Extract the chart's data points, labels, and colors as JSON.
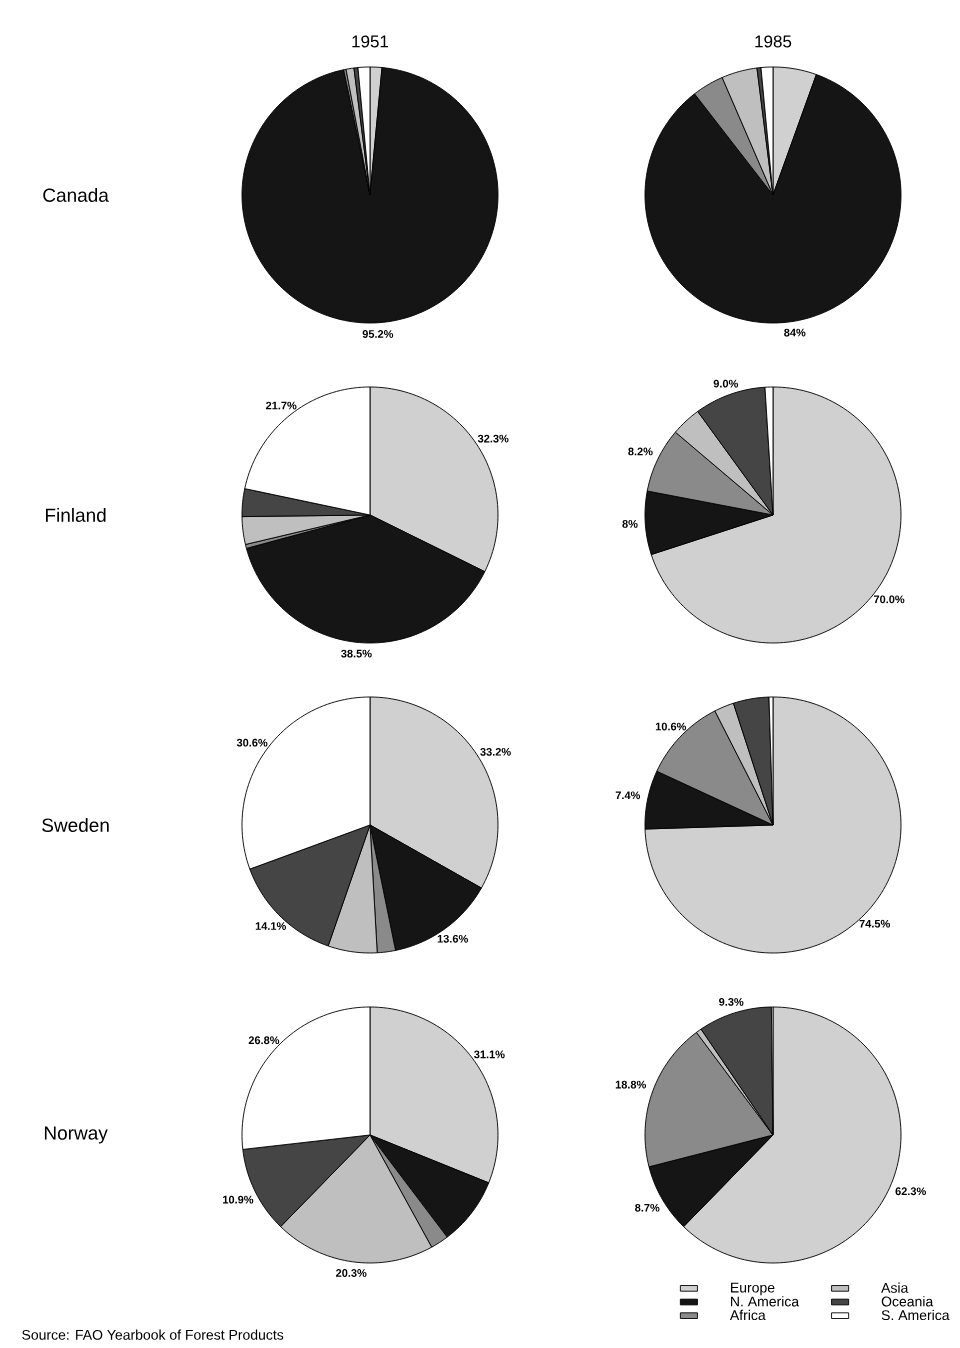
{
  "chart_data": [
    {
      "type": "pie",
      "title": "1951",
      "ylabel": "Canada",
      "categories": [
        null,
        null,
        null,
        null,
        null,
        null
      ],
      "values": [
        1.5,
        95.2,
        0.3,
        1.0,
        0.5,
        1.5
      ],
      "colors": [
        "#d0d0d0",
        "#151515",
        "#8a8a8a",
        "#bfbfbf",
        "#454545",
        "#ffffff"
      ],
      "value_labels": [
        null,
        "95.2%",
        null,
        null,
        null,
        null
      ]
    },
    {
      "type": "pie",
      "title": "1985",
      "categories": [
        null,
        null,
        null,
        null,
        null,
        null
      ],
      "values": [
        5.5,
        84,
        4,
        4.5,
        0.5,
        1.5
      ],
      "colors": [
        "#d0d0d0",
        "#151515",
        "#8a8a8a",
        "#bfbfbf",
        "#454545",
        "#ffffff"
      ],
      "value_labels": [
        null,
        "84%",
        null,
        null,
        null,
        null
      ]
    },
    {
      "type": "pie",
      "ylabel": "Finland",
      "categories": [
        null,
        null,
        null,
        null,
        null,
        null
      ],
      "values": [
        32.3,
        38.5,
        0.5,
        3.5,
        3.5,
        21.7
      ],
      "colors": [
        "#d0d0d0",
        "#151515",
        "#8a8a8a",
        "#bfbfbf",
        "#454545",
        "#ffffff"
      ],
      "value_labels": [
        "32.3%",
        "38.5%",
        null,
        null,
        null,
        "21.7%"
      ]
    },
    {
      "type": "pie",
      "categories": [
        null,
        null,
        null,
        null,
        null,
        null
      ],
      "values": [
        70.0,
        8,
        8.2,
        3.8,
        9.0,
        1.0
      ],
      "colors": [
        "#d0d0d0",
        "#151515",
        "#8a8a8a",
        "#bfbfbf",
        "#454545",
        "#ffffff"
      ],
      "value_labels": [
        "70.0%",
        "8%",
        "8.2%",
        null,
        "9.0%",
        null
      ]
    },
    {
      "type": "pie",
      "ylabel": "Sweden",
      "categories": [
        null,
        null,
        null,
        null,
        null,
        null
      ],
      "values": [
        33.2,
        13.6,
        2.3,
        6.2,
        14.1,
        30.6
      ],
      "colors": [
        "#d0d0d0",
        "#151515",
        "#8a8a8a",
        "#bfbfbf",
        "#454545",
        "#ffffff"
      ],
      "value_labels": [
        "33.2%",
        "13.6%",
        null,
        null,
        "14.1%",
        "30.6%"
      ]
    },
    {
      "type": "pie",
      "categories": [
        null,
        null,
        null,
        null,
        null,
        null
      ],
      "values": [
        74.5,
        7.4,
        10.6,
        2.5,
        4.5,
        0.5
      ],
      "colors": [
        "#d0d0d0",
        "#151515",
        "#8a8a8a",
        "#bfbfbf",
        "#454545",
        "#ffffff"
      ],
      "value_labels": [
        "74.5%",
        "7.4%",
        "10.6%",
        null,
        null,
        null
      ]
    },
    {
      "type": "pie",
      "ylabel": "Norway",
      "categories": [
        null,
        null,
        null,
        null,
        null,
        null
      ],
      "values": [
        31.1,
        8.6,
        2.3,
        20.3,
        10.9,
        26.8
      ],
      "colors": [
        "#d0d0d0",
        "#151515",
        "#8a8a8a",
        "#bfbfbf",
        "#454545",
        "#ffffff"
      ],
      "value_labels": [
        "31.1%",
        null,
        null,
        "20.3%",
        "10.9%",
        "26.8%"
      ],
      "annotations": [
        "Source: FAO Yearbook of Forest Products"
      ]
    },
    {
      "type": "pie",
      "legend": "bottom right",
      "categories": [
        "Europe",
        "N. America",
        "Africa",
        "Asia",
        "Oceania",
        "S. America"
      ],
      "values": [
        62.3,
        8.7,
        18.8,
        0.7,
        9.3,
        0.2
      ],
      "colors": [
        "#d0d0d0",
        "#151515",
        "#8a8a8a",
        "#bfbfbf",
        "#454545",
        "#ffffff"
      ],
      "value_labels": [
        "62.3%",
        "8.7%",
        "18.8%",
        null,
        "9.3%",
        null
      ]
    }
  ]
}
